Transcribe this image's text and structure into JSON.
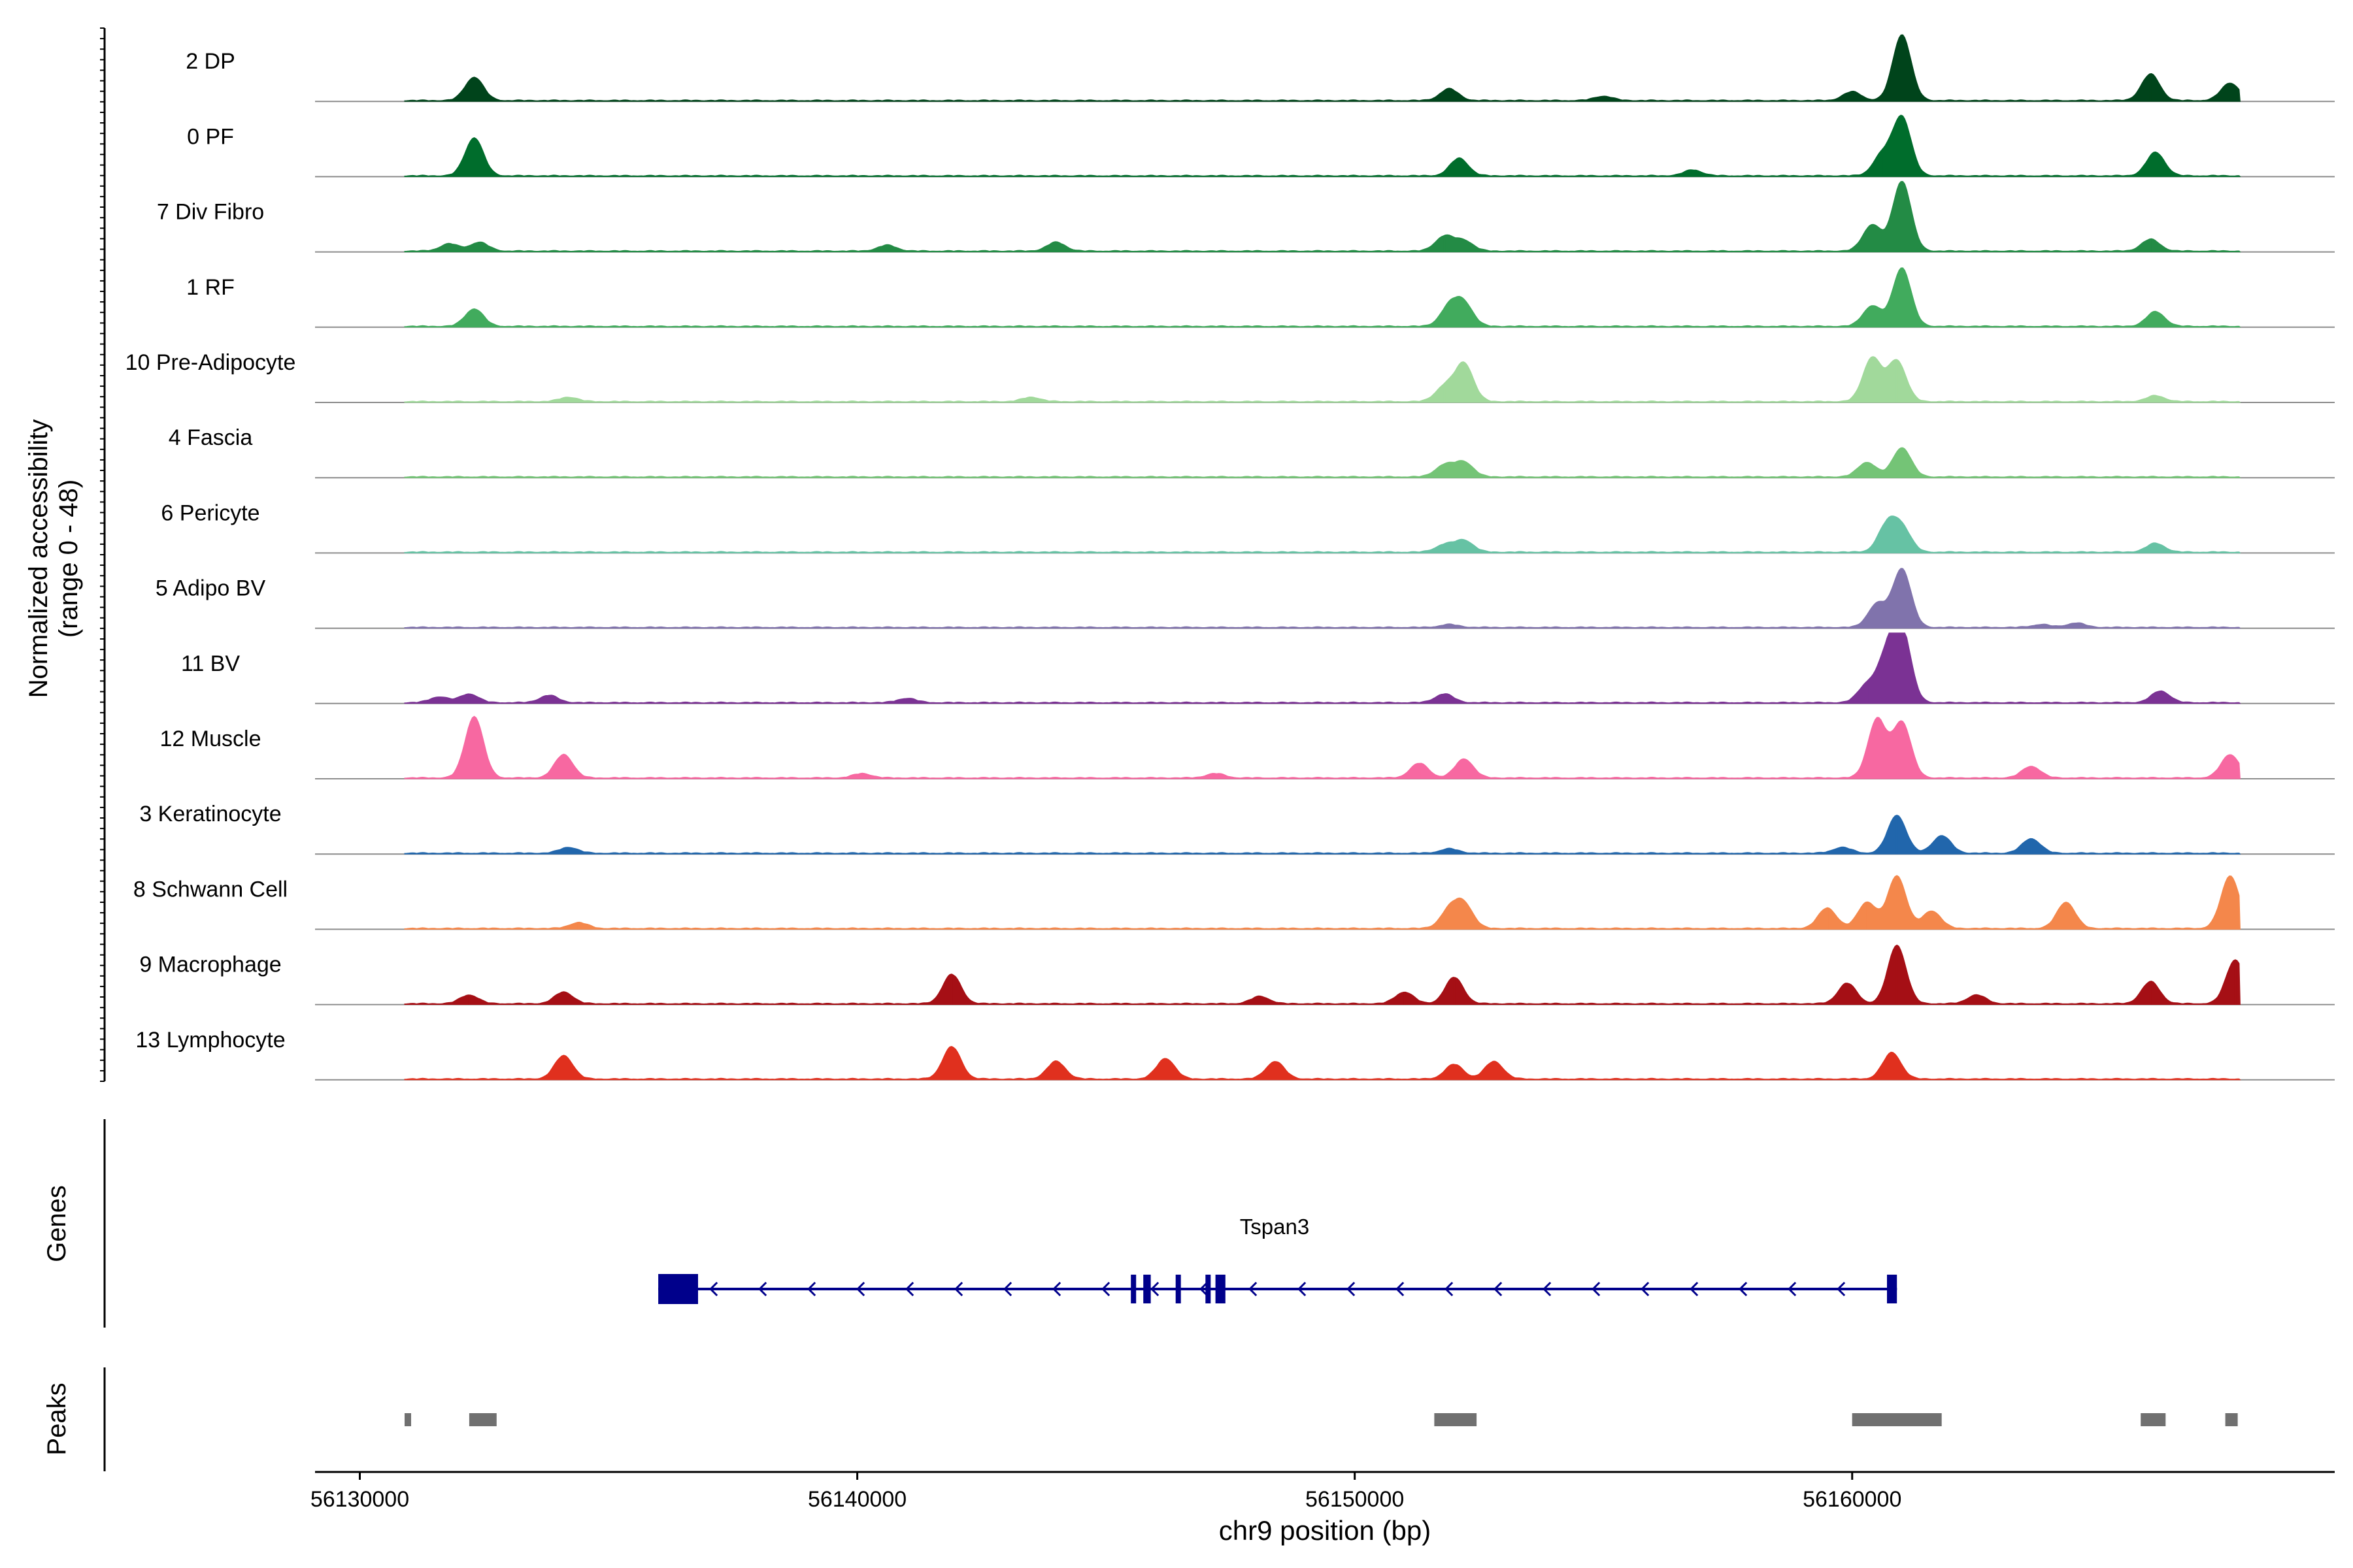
{
  "chart_data": {
    "type": "area",
    "title": "",
    "ylabel_line1": "Normalized accessibility",
    "ylabel_line2": "(range 0 - 48)",
    "xlabel": "chr9 position (bp)",
    "xlim": [
      56129100,
      56169700
    ],
    "ylim": [
      0,
      48
    ],
    "xticks": [
      56130000,
      56140000,
      56150000,
      56160000
    ],
    "xtick_labels": [
      "56130000",
      "56140000",
      "56150000",
      "56160000"
    ],
    "tracks": [
      {
        "name": "2 DP",
        "color": "#00441B",
        "peaks": [
          [
            56132300,
            16
          ],
          [
            56151900,
            8
          ],
          [
            56155000,
            3
          ],
          [
            56160000,
            6
          ],
          [
            56161000,
            45
          ],
          [
            56166000,
            18
          ],
          [
            56167600,
            12
          ]
        ]
      },
      {
        "name": "0 PF",
        "color": "#006D2C",
        "peaks": [
          [
            56132300,
            26
          ],
          [
            56152100,
            12
          ],
          [
            56156800,
            4
          ],
          [
            56160600,
            14
          ],
          [
            56161000,
            40
          ],
          [
            56166100,
            16
          ]
        ]
      },
      {
        "name": "7 Div Fibro",
        "color": "#238B45",
        "peaks": [
          [
            56131800,
            5
          ],
          [
            56132400,
            6
          ],
          [
            56140600,
            4
          ],
          [
            56144000,
            6
          ],
          [
            56151800,
            10
          ],
          [
            56152200,
            7
          ],
          [
            56160400,
            18
          ],
          [
            56161000,
            48
          ],
          [
            56166000,
            8
          ]
        ]
      },
      {
        "name": "1 RF",
        "color": "#41AB5D",
        "peaks": [
          [
            56132300,
            12
          ],
          [
            56151900,
            13
          ],
          [
            56152200,
            15
          ],
          [
            56160400,
            14
          ],
          [
            56161000,
            40
          ],
          [
            56166100,
            10
          ]
        ]
      },
      {
        "name": "10 Pre-Adipocyte",
        "color": "#A1D99B",
        "peaks": [
          [
            56134200,
            3
          ],
          [
            56143500,
            3
          ],
          [
            56151800,
            10
          ],
          [
            56152200,
            26
          ],
          [
            56160400,
            30
          ],
          [
            56160900,
            28
          ],
          [
            56166100,
            4
          ]
        ]
      },
      {
        "name": "4 Fascia",
        "color": "#74C476",
        "peaks": [
          [
            56151800,
            8
          ],
          [
            56152200,
            10
          ],
          [
            56160300,
            10
          ],
          [
            56161000,
            20
          ]
        ]
      },
      {
        "name": "6 Pericyte",
        "color": "#66C2A4",
        "peaks": [
          [
            56151800,
            5
          ],
          [
            56152200,
            8
          ],
          [
            56160700,
            18
          ],
          [
            56161000,
            16
          ],
          [
            56166100,
            6
          ]
        ]
      },
      {
        "name": "5 Adipo BV",
        "color": "#8073AC",
        "peaks": [
          [
            56151900,
            2
          ],
          [
            56160500,
            16
          ],
          [
            56161000,
            40
          ],
          [
            56163800,
            2
          ],
          [
            56164500,
            3
          ]
        ]
      },
      {
        "name": "11 BV",
        "color": "#7B3294",
        "peaks": [
          [
            56131600,
            4
          ],
          [
            56132200,
            6
          ],
          [
            56133800,
            5
          ],
          [
            56141000,
            3
          ],
          [
            56151800,
            6
          ],
          [
            56160300,
            12
          ],
          [
            56160700,
            30
          ],
          [
            56161000,
            48
          ],
          [
            56166200,
            8
          ]
        ]
      },
      {
        "name": "12 Muscle",
        "color": "#F768A1",
        "peaks": [
          [
            56132300,
            42
          ],
          [
            56134100,
            16
          ],
          [
            56140100,
            3
          ],
          [
            56147200,
            3
          ],
          [
            56151300,
            10
          ],
          [
            56152200,
            13
          ],
          [
            56160500,
            40
          ],
          [
            56161000,
            38
          ],
          [
            56163600,
            8
          ],
          [
            56167600,
            16
          ]
        ]
      },
      {
        "name": "3 Keratinocyte",
        "color": "#2166AC",
        "peaks": [
          [
            56134200,
            4
          ],
          [
            56151900,
            3
          ],
          [
            56159800,
            4
          ],
          [
            56160900,
            26
          ],
          [
            56161800,
            12
          ],
          [
            56163600,
            10
          ]
        ]
      },
      {
        "name": "8 Schwann Cell",
        "color": "#F4874B",
        "peaks": [
          [
            56134400,
            4
          ],
          [
            56151900,
            12
          ],
          [
            56152200,
            16
          ],
          [
            56159500,
            14
          ],
          [
            56160300,
            18
          ],
          [
            56160900,
            36
          ],
          [
            56161600,
            12
          ],
          [
            56164300,
            18
          ],
          [
            56167600,
            36
          ]
        ]
      },
      {
        "name": "9 Macrophage",
        "color": "#A50F15",
        "peaks": [
          [
            56132200,
            6
          ],
          [
            56134100,
            8
          ],
          [
            56141900,
            20
          ],
          [
            56148100,
            5
          ],
          [
            56151000,
            8
          ],
          [
            56152000,
            18
          ],
          [
            56159900,
            14
          ],
          [
            56160900,
            40
          ],
          [
            56162500,
            6
          ],
          [
            56166000,
            15
          ],
          [
            56167700,
            30
          ]
        ]
      },
      {
        "name": "13 Lymphocyte",
        "color": "#E0301E",
        "peaks": [
          [
            56134100,
            16
          ],
          [
            56141900,
            22
          ],
          [
            56144000,
            12
          ],
          [
            56146200,
            14
          ],
          [
            56148400,
            12
          ],
          [
            56152000,
            10
          ],
          [
            56152800,
            12
          ],
          [
            56160800,
            18
          ]
        ]
      }
    ],
    "genes_label": "Genes",
    "gene": {
      "name": "Tspan3",
      "color": "#00008B",
      "start": 56136000,
      "end": 56160900,
      "strand": "-",
      "exons": [
        [
          56136000,
          56136800
        ],
        [
          56145500,
          56145600
        ],
        [
          56145750,
          56145900
        ],
        [
          56146400,
          56146480
        ],
        [
          56147000,
          56147070
        ],
        [
          56147200,
          56147400
        ],
        [
          56160700,
          56160900
        ]
      ]
    },
    "peaks_label": "Peaks",
    "peak_color": "#707070",
    "called_peaks": [
      [
        56130900,
        56131000
      ],
      [
        56132200,
        56132750
      ],
      [
        56151600,
        56152450
      ],
      [
        56160000,
        56161800
      ],
      [
        56165800,
        56166300
      ],
      [
        56167500,
        56167750
      ]
    ]
  }
}
